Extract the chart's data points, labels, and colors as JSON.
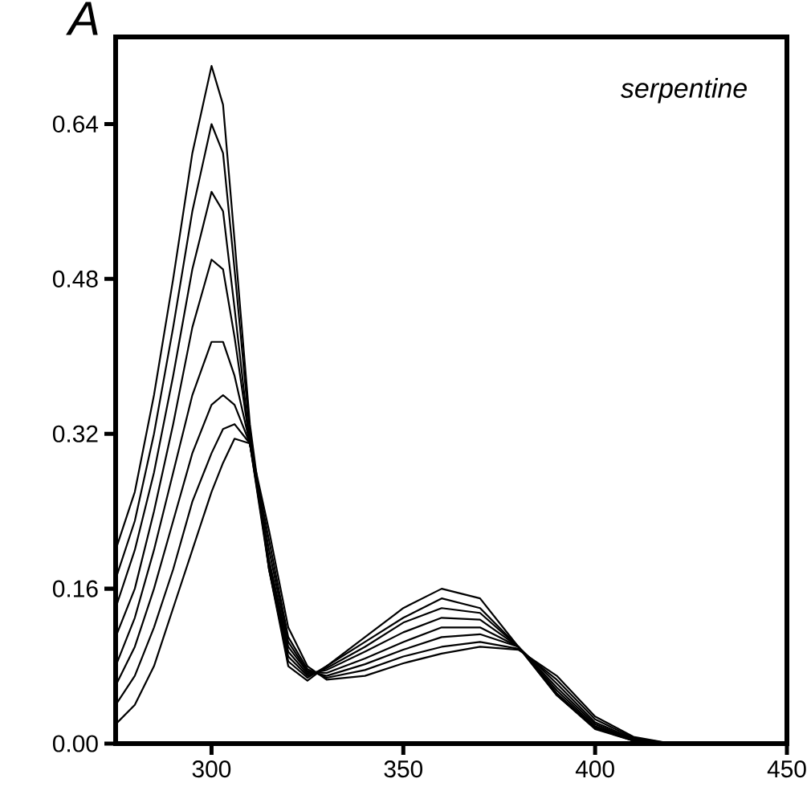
{
  "chart_data": {
    "type": "line",
    "annotations": [
      "A",
      "serpentine"
    ],
    "x": [
      275,
      280,
      285,
      290,
      295,
      300,
      303,
      306,
      310,
      315,
      320,
      325,
      330,
      340,
      350,
      360,
      370,
      380,
      390,
      400,
      410,
      420,
      450
    ],
    "series": [
      {
        "color": "#000000",
        "values": [
          0.2,
          0.26,
          0.36,
          0.48,
          0.61,
          0.7,
          0.66,
          0.52,
          0.33,
          0.18,
          0.08,
          0.065,
          0.08,
          0.11,
          0.14,
          0.16,
          0.15,
          0.1,
          0.05,
          0.015,
          0.003,
          0,
          0
        ]
      },
      {
        "color": "#000000",
        "values": [
          0.17,
          0.23,
          0.32,
          0.43,
          0.55,
          0.64,
          0.61,
          0.49,
          0.32,
          0.18,
          0.085,
          0.068,
          0.08,
          0.105,
          0.13,
          0.15,
          0.14,
          0.1,
          0.05,
          0.016,
          0.003,
          0,
          0
        ]
      },
      {
        "color": "#000000",
        "values": [
          0.14,
          0.2,
          0.28,
          0.38,
          0.49,
          0.57,
          0.55,
          0.45,
          0.31,
          0.18,
          0.09,
          0.07,
          0.078,
          0.1,
          0.125,
          0.14,
          0.135,
          0.1,
          0.052,
          0.017,
          0.003,
          0,
          0
        ]
      },
      {
        "color": "#000000",
        "values": [
          0.11,
          0.16,
          0.24,
          0.33,
          0.43,
          0.5,
          0.49,
          0.42,
          0.31,
          0.185,
          0.095,
          0.072,
          0.076,
          0.095,
          0.115,
          0.13,
          0.128,
          0.1,
          0.055,
          0.018,
          0.004,
          0,
          0
        ]
      },
      {
        "color": "#000000",
        "values": [
          0.08,
          0.13,
          0.2,
          0.28,
          0.36,
          0.415,
          0.415,
          0.38,
          0.31,
          0.19,
          0.1,
          0.074,
          0.073,
          0.088,
          0.105,
          0.12,
          0.12,
          0.1,
          0.058,
          0.02,
          0.004,
          0,
          0
        ]
      },
      {
        "color": "#000000",
        "values": [
          0.06,
          0.1,
          0.16,
          0.23,
          0.3,
          0.35,
          0.36,
          0.35,
          0.31,
          0.2,
          0.105,
          0.075,
          0.07,
          0.082,
          0.097,
          0.11,
          0.113,
          0.1,
          0.062,
          0.022,
          0.005,
          0,
          0
        ]
      },
      {
        "color": "#000000",
        "values": [
          0.04,
          0.07,
          0.12,
          0.18,
          0.25,
          0.3,
          0.325,
          0.33,
          0.31,
          0.21,
          0.11,
          0.077,
          0.068,
          0.076,
          0.09,
          0.1,
          0.105,
          0.098,
          0.066,
          0.025,
          0.006,
          0,
          0
        ]
      },
      {
        "color": "#000000",
        "values": [
          0.02,
          0.04,
          0.08,
          0.14,
          0.2,
          0.26,
          0.29,
          0.315,
          0.31,
          0.22,
          0.12,
          0.08,
          0.066,
          0.07,
          0.083,
          0.093,
          0.1,
          0.097,
          0.07,
          0.028,
          0.007,
          0,
          0
        ]
      }
    ],
    "xlim": [
      275,
      450
    ],
    "ylim": [
      0,
      0.73
    ],
    "xticks": [
      300,
      350,
      400,
      450
    ],
    "yticks": [
      {
        "value": 0,
        "label": "0.00"
      },
      0.16,
      0.32,
      0.48,
      0.64
    ],
    "marker": "none",
    "line_style": "solid",
    "grid": false
  }
}
